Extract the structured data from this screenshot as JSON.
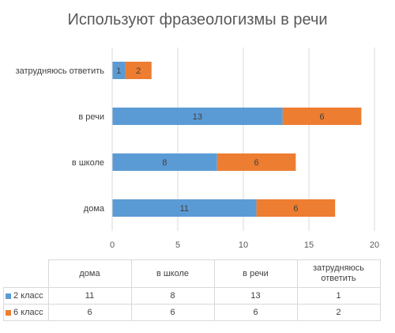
{
  "chart_data": {
    "type": "bar",
    "orientation": "horizontal",
    "stacked": true,
    "title": "Используют фразеологизмы в речи",
    "categories": [
      "дома",
      "в школе",
      "в речи",
      "затрудняюсь ответить"
    ],
    "table_headers": [
      "дома",
      "в школе",
      "в речи",
      "затрудняюсь\nответить"
    ],
    "series": [
      {
        "name": "2 класс",
        "values": [
          11,
          8,
          13,
          1
        ],
        "color": "#5B9BD5"
      },
      {
        "name": "6 класс",
        "values": [
          6,
          6,
          6,
          2
        ],
        "color": "#ED7D31"
      }
    ],
    "x_ticks": [
      "0",
      "5",
      "10",
      "15",
      "20"
    ],
    "xlim": [
      0,
      20
    ],
    "grid": true,
    "data_labels": true,
    "legend": "data table below chart"
  }
}
